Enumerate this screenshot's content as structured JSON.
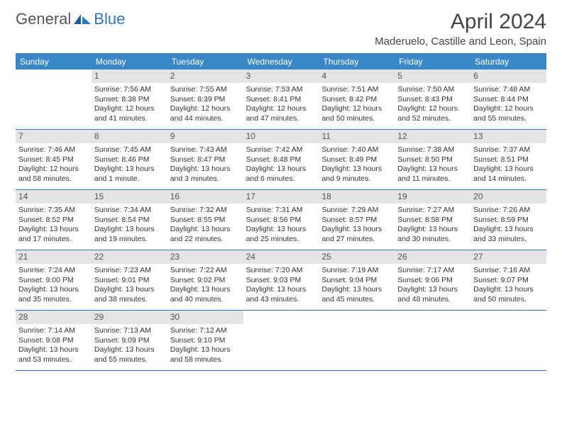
{
  "logo": {
    "word1": "General",
    "word2": "Blue"
  },
  "title": "April 2024",
  "location": "Maderuelo, Castille and Leon, Spain",
  "colors": {
    "header_bg": "#3a87c7",
    "border": "#2f78bf",
    "daynum_bg": "#e4e4e4",
    "text": "#333333",
    "logo_gray": "#555555",
    "logo_blue": "#2f78bf"
  },
  "fonts": {
    "title_size_pt": 22,
    "body_size_pt": 8,
    "dayhead_size_pt": 9
  },
  "day_headers": [
    "Sunday",
    "Monday",
    "Tuesday",
    "Wednesday",
    "Thursday",
    "Friday",
    "Saturday"
  ],
  "weeks": [
    [
      null,
      {
        "n": "1",
        "sr": "Sunrise: 7:56 AM",
        "ss": "Sunset: 8:38 PM",
        "d1": "Daylight: 12 hours",
        "d2": "and 41 minutes."
      },
      {
        "n": "2",
        "sr": "Sunrise: 7:55 AM",
        "ss": "Sunset: 8:39 PM",
        "d1": "Daylight: 12 hours",
        "d2": "and 44 minutes."
      },
      {
        "n": "3",
        "sr": "Sunrise: 7:53 AM",
        "ss": "Sunset: 8:41 PM",
        "d1": "Daylight: 12 hours",
        "d2": "and 47 minutes."
      },
      {
        "n": "4",
        "sr": "Sunrise: 7:51 AM",
        "ss": "Sunset: 8:42 PM",
        "d1": "Daylight: 12 hours",
        "d2": "and 50 minutes."
      },
      {
        "n": "5",
        "sr": "Sunrise: 7:50 AM",
        "ss": "Sunset: 8:43 PM",
        "d1": "Daylight: 12 hours",
        "d2": "and 52 minutes."
      },
      {
        "n": "6",
        "sr": "Sunrise: 7:48 AM",
        "ss": "Sunset: 8:44 PM",
        "d1": "Daylight: 12 hours",
        "d2": "and 55 minutes."
      }
    ],
    [
      {
        "n": "7",
        "sr": "Sunrise: 7:46 AM",
        "ss": "Sunset: 8:45 PM",
        "d1": "Daylight: 12 hours",
        "d2": "and 58 minutes."
      },
      {
        "n": "8",
        "sr": "Sunrise: 7:45 AM",
        "ss": "Sunset: 8:46 PM",
        "d1": "Daylight: 13 hours",
        "d2": "and 1 minute."
      },
      {
        "n": "9",
        "sr": "Sunrise: 7:43 AM",
        "ss": "Sunset: 8:47 PM",
        "d1": "Daylight: 13 hours",
        "d2": "and 3 minutes."
      },
      {
        "n": "10",
        "sr": "Sunrise: 7:42 AM",
        "ss": "Sunset: 8:48 PM",
        "d1": "Daylight: 13 hours",
        "d2": "and 6 minutes."
      },
      {
        "n": "11",
        "sr": "Sunrise: 7:40 AM",
        "ss": "Sunset: 8:49 PM",
        "d1": "Daylight: 13 hours",
        "d2": "and 9 minutes."
      },
      {
        "n": "12",
        "sr": "Sunrise: 7:38 AM",
        "ss": "Sunset: 8:50 PM",
        "d1": "Daylight: 13 hours",
        "d2": "and 11 minutes."
      },
      {
        "n": "13",
        "sr": "Sunrise: 7:37 AM",
        "ss": "Sunset: 8:51 PM",
        "d1": "Daylight: 13 hours",
        "d2": "and 14 minutes."
      }
    ],
    [
      {
        "n": "14",
        "sr": "Sunrise: 7:35 AM",
        "ss": "Sunset: 8:52 PM",
        "d1": "Daylight: 13 hours",
        "d2": "and 17 minutes."
      },
      {
        "n": "15",
        "sr": "Sunrise: 7:34 AM",
        "ss": "Sunset: 8:54 PM",
        "d1": "Daylight: 13 hours",
        "d2": "and 19 minutes."
      },
      {
        "n": "16",
        "sr": "Sunrise: 7:32 AM",
        "ss": "Sunset: 8:55 PM",
        "d1": "Daylight: 13 hours",
        "d2": "and 22 minutes."
      },
      {
        "n": "17",
        "sr": "Sunrise: 7:31 AM",
        "ss": "Sunset: 8:56 PM",
        "d1": "Daylight: 13 hours",
        "d2": "and 25 minutes."
      },
      {
        "n": "18",
        "sr": "Sunrise: 7:29 AM",
        "ss": "Sunset: 8:57 PM",
        "d1": "Daylight: 13 hours",
        "d2": "and 27 minutes."
      },
      {
        "n": "19",
        "sr": "Sunrise: 7:27 AM",
        "ss": "Sunset: 8:58 PM",
        "d1": "Daylight: 13 hours",
        "d2": "and 30 minutes."
      },
      {
        "n": "20",
        "sr": "Sunrise: 7:26 AM",
        "ss": "Sunset: 8:59 PM",
        "d1": "Daylight: 13 hours",
        "d2": "and 33 minutes."
      }
    ],
    [
      {
        "n": "21",
        "sr": "Sunrise: 7:24 AM",
        "ss": "Sunset: 9:00 PM",
        "d1": "Daylight: 13 hours",
        "d2": "and 35 minutes."
      },
      {
        "n": "22",
        "sr": "Sunrise: 7:23 AM",
        "ss": "Sunset: 9:01 PM",
        "d1": "Daylight: 13 hours",
        "d2": "and 38 minutes."
      },
      {
        "n": "23",
        "sr": "Sunrise: 7:22 AM",
        "ss": "Sunset: 9:02 PM",
        "d1": "Daylight: 13 hours",
        "d2": "and 40 minutes."
      },
      {
        "n": "24",
        "sr": "Sunrise: 7:20 AM",
        "ss": "Sunset: 9:03 PM",
        "d1": "Daylight: 13 hours",
        "d2": "and 43 minutes."
      },
      {
        "n": "25",
        "sr": "Sunrise: 7:19 AM",
        "ss": "Sunset: 9:04 PM",
        "d1": "Daylight: 13 hours",
        "d2": "and 45 minutes."
      },
      {
        "n": "26",
        "sr": "Sunrise: 7:17 AM",
        "ss": "Sunset: 9:06 PM",
        "d1": "Daylight: 13 hours",
        "d2": "and 48 minutes."
      },
      {
        "n": "27",
        "sr": "Sunrise: 7:16 AM",
        "ss": "Sunset: 9:07 PM",
        "d1": "Daylight: 13 hours",
        "d2": "and 50 minutes."
      }
    ],
    [
      {
        "n": "28",
        "sr": "Sunrise: 7:14 AM",
        "ss": "Sunset: 9:08 PM",
        "d1": "Daylight: 13 hours",
        "d2": "and 53 minutes."
      },
      {
        "n": "29",
        "sr": "Sunrise: 7:13 AM",
        "ss": "Sunset: 9:09 PM",
        "d1": "Daylight: 13 hours",
        "d2": "and 55 minutes."
      },
      {
        "n": "30",
        "sr": "Sunrise: 7:12 AM",
        "ss": "Sunset: 9:10 PM",
        "d1": "Daylight: 13 hours",
        "d2": "and 58 minutes."
      },
      null,
      null,
      null,
      null
    ]
  ]
}
